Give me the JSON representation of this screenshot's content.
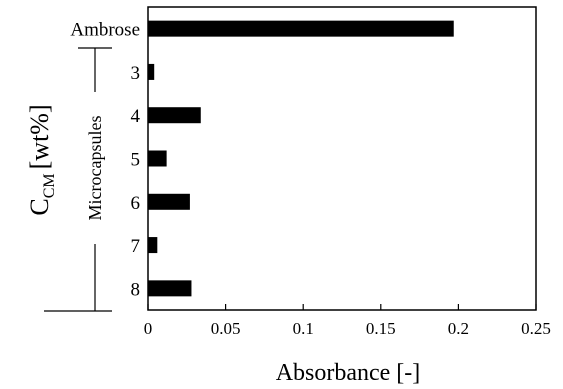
{
  "chart_data": {
    "type": "bar",
    "orientation": "horizontal",
    "categories": [
      "Ambrose",
      "3",
      "4",
      "5",
      "6",
      "7",
      "8"
    ],
    "values": [
      0.197,
      0.004,
      0.034,
      0.012,
      0.027,
      0.006,
      0.028
    ],
    "xlabel": "Absorbance [-]",
    "ylabel_main": "C",
    "ylabel_sub": "CM",
    "ylabel_unit": "[wt%]",
    "group_label": "Microcapsules",
    "xlim": [
      0,
      0.25
    ],
    "xticks": [
      "0",
      "0.05",
      "0.1",
      "0.15",
      "0.2",
      "0.25"
    ],
    "grid": false,
    "bar_color": "#000000"
  }
}
